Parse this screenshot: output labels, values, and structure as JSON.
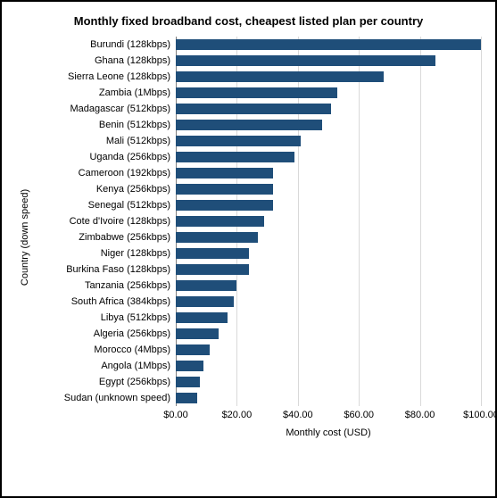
{
  "chart": {
    "type": "bar",
    "title": "Monthly fixed broadband cost, cheapest listed plan per country",
    "title_fontsize": 13,
    "ylabel": "Country (down speed)",
    "xlabel": "Monthly cost (USD)",
    "label_fontsize": 11,
    "tick_fontsize": 11,
    "category_fontsize": 11,
    "xlim": [
      0,
      100
    ],
    "xtick_step": 20,
    "xticks": [
      "$0.00",
      "$20.00",
      "$40.00",
      "$60.00",
      "$80.00",
      "$100.00"
    ],
    "bar_color": "#1f4e79",
    "grid_color": "#d9d9d9",
    "axis_color": "#808080",
    "background_color": "#ffffff",
    "categories": [
      "Burundi (128kbps)",
      "Ghana (128kbps)",
      "Sierra Leone (128kbps)",
      "Zambia (1Mbps)",
      "Madagascar (512kbps)",
      "Benin (512kbps)",
      "Mali (512kbps)",
      "Uganda (256kbps)",
      "Cameroon (192kbps)",
      "Kenya (256kbps)",
      "Senegal (512kbps)",
      "Cote d'Ivoire (128kbps)",
      "Zimbabwe (256kbps)",
      "Niger (128kbps)",
      "Burkina Faso (128kbps)",
      "Tanzania (256kbps)",
      "South Africa (384kbps)",
      "Libya (512kbps)",
      "Algeria (256kbps)",
      "Morocco (4Mbps)",
      "Angola (1Mbps)",
      "Egypt (256kbps)",
      "Sudan (unknown speed)"
    ],
    "values": [
      100,
      85,
      68,
      53,
      51,
      48,
      41,
      39,
      32,
      32,
      32,
      29,
      27,
      24,
      24,
      20,
      19,
      17,
      14,
      11,
      9,
      8,
      7
    ]
  }
}
